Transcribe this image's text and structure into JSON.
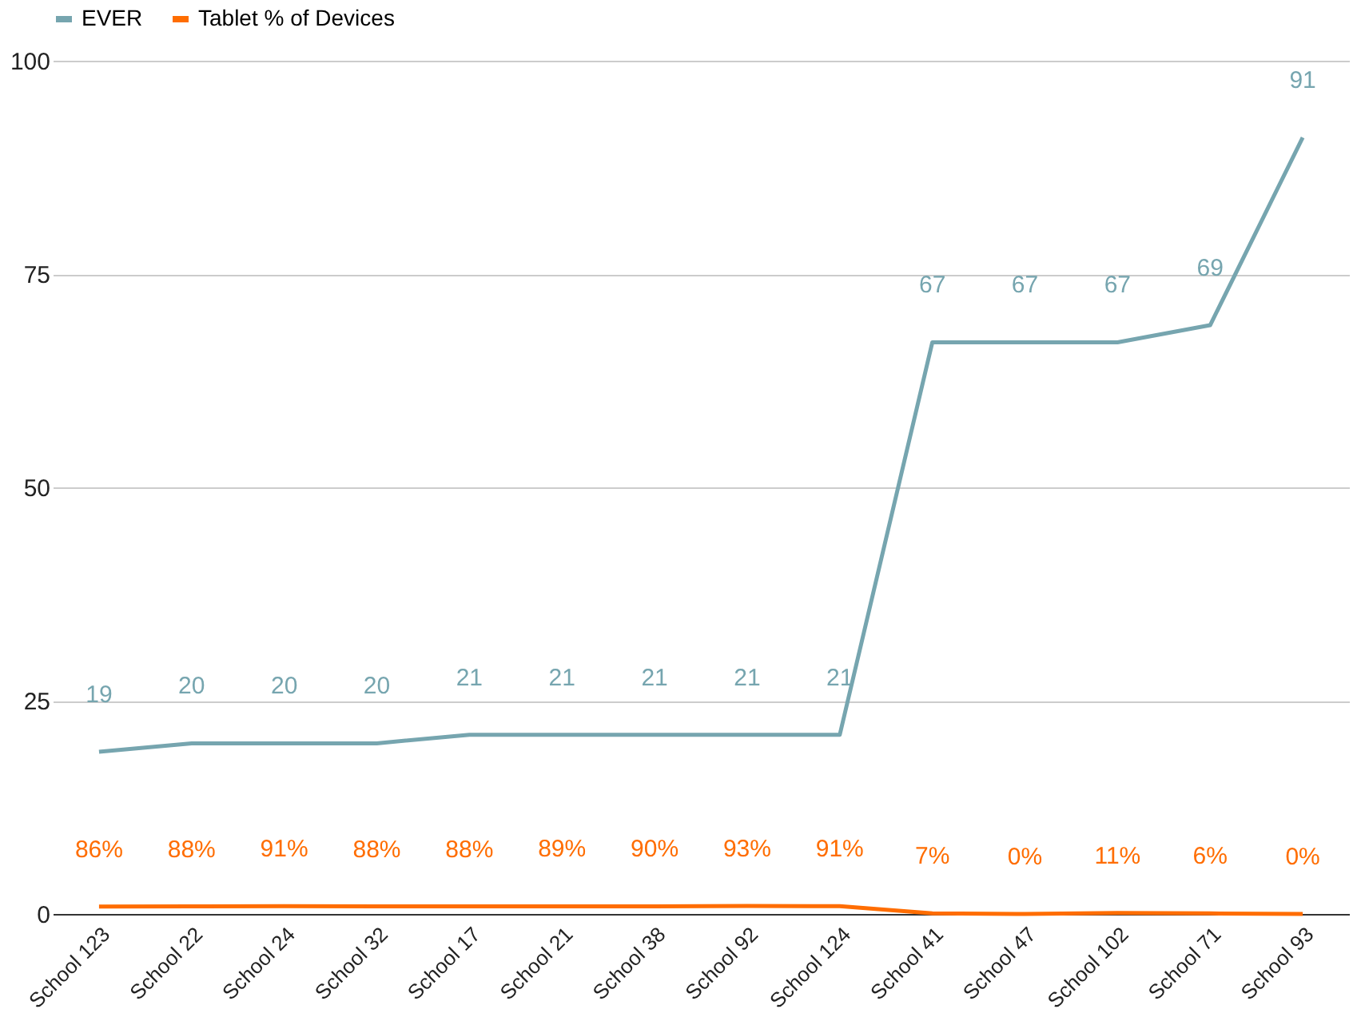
{
  "chart_data": {
    "type": "line",
    "categories": [
      "School 123",
      "School 22",
      "School 24",
      "School 32",
      "School 17",
      "School 21",
      "School 38",
      "School 92",
      "School 124",
      "School 41",
      "School 47",
      "School 102",
      "School 71",
      "School 93"
    ],
    "series": [
      {
        "name": "EVER",
        "color": "#76a5af",
        "values": [
          19,
          20,
          20,
          20,
          21,
          21,
          21,
          21,
          21,
          67,
          67,
          67,
          69,
          91
        ],
        "value_labels": [
          "19",
          "20",
          "20",
          "20",
          "21",
          "21",
          "21",
          "21",
          "21",
          "67",
          "67",
          "67",
          "69",
          "91"
        ]
      },
      {
        "name": "Tablet % of Devices",
        "color": "#ff6d01",
        "values": [
          0.86,
          0.88,
          0.91,
          0.88,
          0.88,
          0.89,
          0.9,
          0.93,
          0.91,
          0.07,
          0,
          0.11,
          0.06,
          0
        ],
        "value_labels": [
          "86%",
          "88%",
          "91%",
          "88%",
          "88%",
          "89%",
          "90%",
          "93%",
          "91%",
          "7%",
          "0%",
          "11%",
          "6%",
          "0%"
        ]
      }
    ],
    "ylim": [
      0,
      100
    ],
    "yticks": [
      0,
      25,
      50,
      75,
      100
    ],
    "grid": "y",
    "legend": "top",
    "marker": "none",
    "line_style": "solid"
  }
}
